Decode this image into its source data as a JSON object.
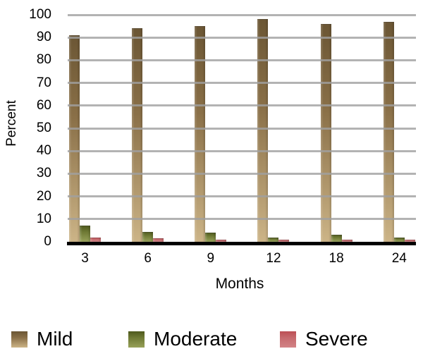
{
  "chart_data": {
    "type": "bar",
    "categories": [
      "3",
      "6",
      "9",
      "12",
      "18",
      "24"
    ],
    "series": [
      {
        "name": "Mild",
        "color_top": "#6b5634",
        "color_mid": "#8a7048",
        "color_bottom": "#ccb487",
        "values": [
          91,
          94,
          95,
          98,
          96,
          97
        ]
      },
      {
        "name": "Moderate",
        "color_top": "#4e591d",
        "color_mid": "#6f7a35",
        "color_bottom": "#97a159",
        "values": [
          7,
          4.5,
          4,
          2,
          3,
          2
        ]
      },
      {
        "name": "Severe",
        "color_top": "#bc4f55",
        "color_mid": "#c66a6e",
        "color_bottom": "#d28386",
        "values": [
          2,
          1.5,
          1,
          1,
          1,
          1
        ]
      }
    ],
    "title": "",
    "xlabel": "Months",
    "ylabel": "Percent",
    "ylim": [
      0,
      100
    ],
    "ytick_step": 10,
    "y_ticks": [
      "0",
      "10",
      "20",
      "30",
      "40",
      "50",
      "60",
      "70",
      "80",
      "90",
      "100"
    ],
    "grid": true,
    "legend_position": "bottom",
    "colors": {
      "gridline": "#b3b3b3",
      "axis": "#000000",
      "text": "#000000",
      "background": "#ffffff"
    }
  },
  "legend": {
    "items": [
      {
        "label": "Mild"
      },
      {
        "label": "Moderate"
      },
      {
        "label": "Severe"
      }
    ]
  }
}
